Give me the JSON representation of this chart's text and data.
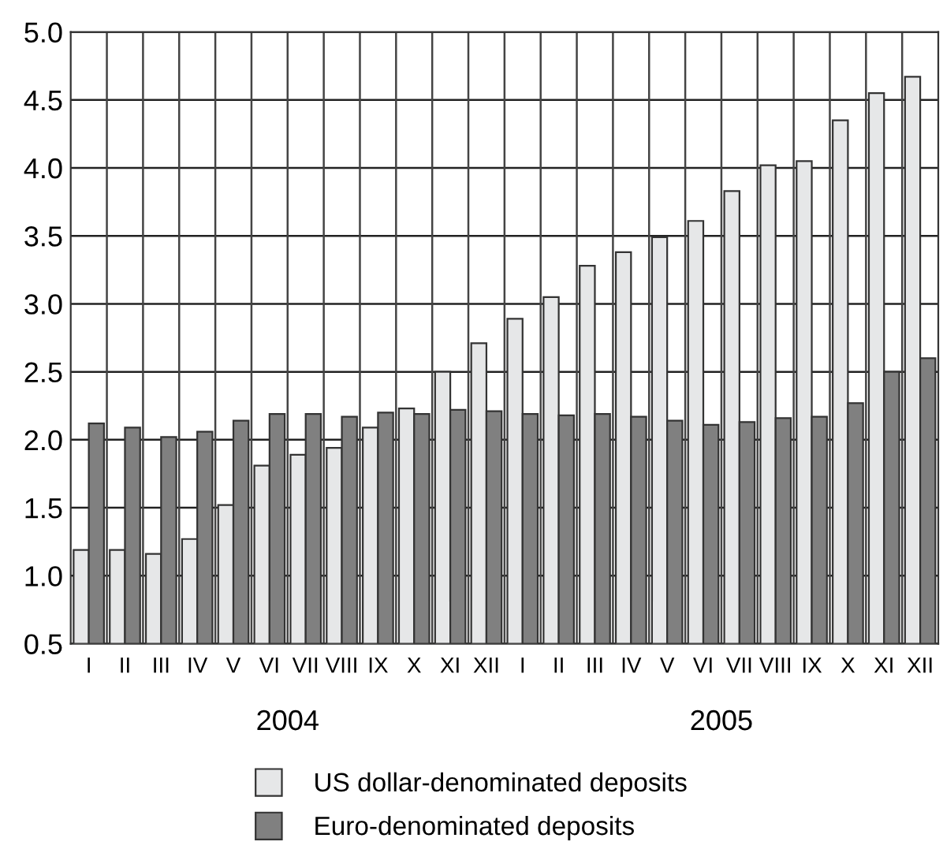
{
  "chart_data": {
    "type": "bar",
    "categories": [
      "I",
      "II",
      "III",
      "IV",
      "V",
      "VI",
      "VII",
      "VIII",
      "IX",
      "X",
      "XI",
      "XII",
      "I",
      "II",
      "III",
      "IV",
      "V",
      "VI",
      "VII",
      "VIII",
      "IX",
      "X",
      "XI",
      "XII"
    ],
    "series": [
      {
        "name": "US dollar-denominated deposits",
        "color": "#e6e7e8",
        "values": [
          1.19,
          1.19,
          1.16,
          1.27,
          1.52,
          1.81,
          1.89,
          1.94,
          2.09,
          2.23,
          2.5,
          2.71,
          2.89,
          3.05,
          3.28,
          3.38,
          3.49,
          3.61,
          3.83,
          4.02,
          4.05,
          4.35,
          4.55,
          4.67
        ]
      },
      {
        "name": "Euro-denominated deposits",
        "color": "#808080",
        "values": [
          2.12,
          2.09,
          2.02,
          2.06,
          2.14,
          2.19,
          2.19,
          2.17,
          2.2,
          2.19,
          2.22,
          2.21,
          2.19,
          2.18,
          2.19,
          2.17,
          2.14,
          2.11,
          2.13,
          2.16,
          2.17,
          2.27,
          2.5,
          2.6
        ]
      }
    ],
    "annotations": [
      "2004",
      "2005"
    ],
    "ylim": [
      0.5,
      5.0
    ],
    "yticks": [
      0.5,
      {
        "value": 1,
        "label": "1.0"
      },
      1.5,
      {
        "value": 2,
        "label": "2.0"
      },
      2.5,
      {
        "value": 3,
        "label": "3.0"
      },
      3.5,
      {
        "value": 4,
        "label": "4.0"
      },
      4.5,
      {
        "value": 5,
        "label": "5.0"
      }
    ],
    "grid": true,
    "legend": "bottom"
  }
}
